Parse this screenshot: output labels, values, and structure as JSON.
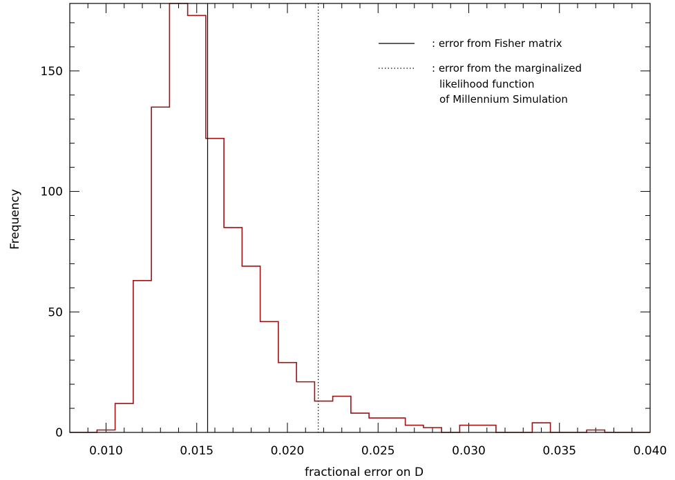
{
  "chart_data": {
    "type": "histogram",
    "xlabel": "fractional error on D",
    "ylabel": "Frequency",
    "xlim": [
      0.008,
      0.04
    ],
    "ylim": [
      0,
      178
    ],
    "xticks": [
      0.01,
      0.015,
      0.02,
      0.025,
      0.03,
      0.035,
      0.04
    ],
    "xtick_labels": [
      "0.010",
      "0.015",
      "0.020",
      "0.025",
      "0.030",
      "0.035",
      "0.040"
    ],
    "yticks": [
      0,
      50,
      100,
      150
    ],
    "ytick_labels": [
      "0",
      "50",
      "100",
      "150"
    ],
    "bin_width": 0.001,
    "bin_starts": [
      0.0085,
      0.0095,
      0.0105,
      0.0115,
      0.0125,
      0.0135,
      0.0145,
      0.0155,
      0.0165,
      0.0175,
      0.0185,
      0.0195,
      0.0205,
      0.0215,
      0.0225,
      0.0235,
      0.0245,
      0.0255,
      0.0265,
      0.0275,
      0.0285,
      0.0295,
      0.0305,
      0.0315,
      0.0325,
      0.0335,
      0.0345,
      0.0355,
      0.0365,
      0.0375,
      0.0385
    ],
    "counts": [
      0,
      1,
      12,
      63,
      135,
      178,
      173,
      122,
      85,
      69,
      46,
      29,
      21,
      13,
      15,
      8,
      6,
      6,
      3,
      2,
      0,
      3,
      3,
      0,
      0,
      4,
      0,
      0,
      1,
      0,
      0
    ],
    "vlines": [
      {
        "x": 0.0156,
        "style": "solid",
        "label": ": error from Fisher matrix"
      },
      {
        "x": 0.0217,
        "style": "dotted",
        "label": ": error from the marginalized"
      }
    ],
    "legend_extra_lines": [
      "likelihood function",
      "of Millennium Simulation"
    ],
    "legend_position": "top-right",
    "colors": {
      "histogram": "#a01010",
      "lines": "#000000"
    }
  }
}
